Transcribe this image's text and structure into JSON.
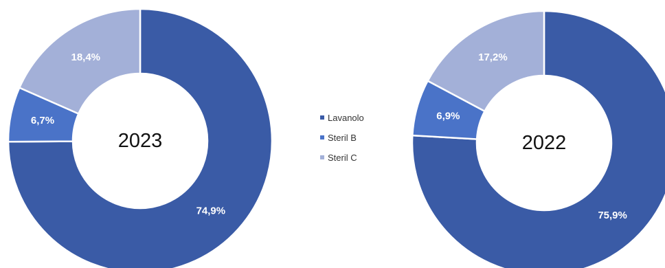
{
  "chart_data": [
    {
      "type": "donut",
      "center_label": "2023",
      "categories": [
        "Lavanolo",
        "Steril B",
        "Steril C"
      ],
      "values": [
        74.9,
        6.7,
        18.4
      ],
      "value_labels": [
        "74,9%",
        "6,7%",
        "18,4%"
      ],
      "colors": [
        "#3a5ba6",
        "#4a73c8",
        "#a3b0d8"
      ]
    },
    {
      "type": "donut",
      "center_label": "2022",
      "categories": [
        "Lavanolo",
        "Steril B",
        "Steril C"
      ],
      "values": [
        75.9,
        6.9,
        17.2
      ],
      "value_labels": [
        "75,9%",
        "6,9%",
        "17,2%"
      ],
      "colors": [
        "#3a5ba6",
        "#4a73c8",
        "#a3b0d8"
      ]
    }
  ],
  "legend": {
    "placement": "center",
    "items": [
      {
        "label": "Lavanolo",
        "color": "#3a5ba6"
      },
      {
        "label": "Steril B",
        "color": "#4a73c8"
      },
      {
        "label": "Steril C",
        "color": "#a3b0d8"
      }
    ]
  }
}
